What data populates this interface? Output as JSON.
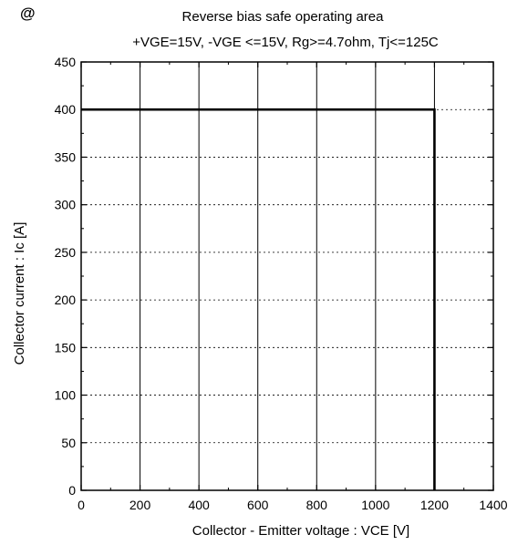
{
  "chart_data": {
    "type": "line",
    "marker": "@",
    "title": "Reverse bias safe operating area",
    "subtitle": "+VGE=15V, -VGE <=15V, Rg>=4.7ohm, Tj<=125C",
    "xlabel": "Collector - Emitter voltage  :  VCE   [V]",
    "ylabel": "Collector current  :  Ic  [A]",
    "xlim": [
      0,
      1400
    ],
    "ylim": [
      0,
      450
    ],
    "x_ticks": [
      0,
      200,
      400,
      600,
      800,
      1000,
      1200,
      1400
    ],
    "y_ticks": [
      0,
      50,
      100,
      150,
      200,
      250,
      300,
      350,
      400,
      450
    ],
    "x_tick_labels": [
      "0",
      "200",
      "400",
      "600",
      "800",
      "1000",
      "1200",
      "1400"
    ],
    "y_tick_labels": [
      "0",
      "50",
      "100",
      "150",
      "200",
      "250",
      "300",
      "350",
      "400",
      "450"
    ],
    "grid": true,
    "series": [
      {
        "x": [
          0,
          1200,
          1200
        ],
        "y": [
          400,
          400,
          0
        ]
      }
    ],
    "colors": {
      "line": "#000000",
      "grid": "#000000",
      "background": "#ffffff"
    }
  }
}
